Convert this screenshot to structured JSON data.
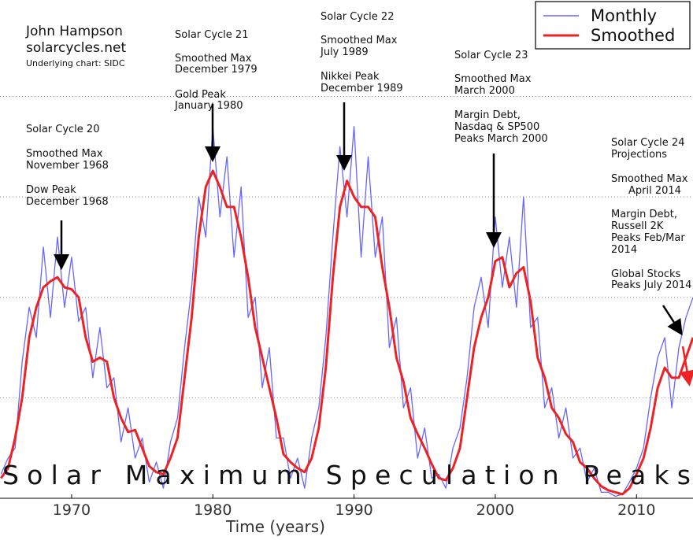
{
  "chart_data": {
    "type": "line",
    "title": "Solar Maximum Speculation Peaks",
    "author": [
      "John Hampson",
      "solarcycles.net"
    ],
    "source": "Underlying chart: SIDC",
    "x_label": "Time (years)",
    "x": [
      1965,
      1965.5,
      1966,
      1966.5,
      1967,
      1967.5,
      1968,
      1968.5,
      1969,
      1969.5,
      1970,
      1970.5,
      1971,
      1971.5,
      1972,
      1972.5,
      1973,
      1973.5,
      1974,
      1974.5,
      1975,
      1975.5,
      1976,
      1976.5,
      1977,
      1977.5,
      1978,
      1978.5,
      1979,
      1979.5,
      1980,
      1980.5,
      1981,
      1981.5,
      1982,
      1982.5,
      1983,
      1983.5,
      1984,
      1984.5,
      1985,
      1985.5,
      1986,
      1986.5,
      1987,
      1987.5,
      1988,
      1988.5,
      1989,
      1989.5,
      1990,
      1990.5,
      1991,
      1991.5,
      1992,
      1992.5,
      1993,
      1993.5,
      1994,
      1994.5,
      1995,
      1995.5,
      1996,
      1996.5,
      1997,
      1997.5,
      1998,
      1998.5,
      1999,
      1999.5,
      2000,
      2000.5,
      2001,
      2001.5,
      2002,
      2002.5,
      2003,
      2003.5,
      2004,
      2004.5,
      2005,
      2005.5,
      2006,
      2006.5,
      2007,
      2007.5,
      2008,
      2008.5,
      2009,
      2009.5,
      2010,
      2010.5,
      2011,
      2011.5,
      2012,
      2012.5,
      2013,
      2013.5,
      2014
    ],
    "series": [
      {
        "name": "Monthly",
        "color": "#6666ff",
        "values": [
          12,
          20,
          25,
          68,
          95,
          80,
          125,
          90,
          130,
          95,
          120,
          88,
          95,
          60,
          85,
          55,
          60,
          28,
          45,
          20,
          30,
          8,
          18,
          5,
          28,
          40,
          75,
          105,
          150,
          130,
          185,
          140,
          170,
          120,
          155,
          90,
          100,
          55,
          75,
          30,
          30,
          10,
          20,
          5,
          30,
          45,
          80,
          130,
          175,
          140,
          185,
          120,
          170,
          120,
          140,
          75,
          90,
          45,
          55,
          20,
          35,
          10,
          12,
          5,
          25,
          35,
          60,
          95,
          110,
          85,
          140,
          105,
          130,
          95,
          150,
          85,
          90,
          45,
          55,
          30,
          45,
          20,
          25,
          8,
          15,
          3,
          3,
          1,
          2,
          8,
          15,
          25,
          50,
          70,
          80,
          45,
          75,
          90,
          100
        ]
      },
      {
        "name": "Smoothed",
        "color": "#ee2222",
        "values": [
          10,
          15,
          30,
          50,
          80,
          95,
          105,
          108,
          110,
          105,
          104,
          100,
          80,
          68,
          70,
          68,
          50,
          40,
          33,
          34,
          25,
          16,
          13,
          12,
          20,
          30,
          60,
          90,
          130,
          155,
          163,
          155,
          145,
          145,
          130,
          110,
          85,
          70,
          55,
          40,
          22,
          18,
          15,
          13,
          20,
          35,
          65,
          110,
          145,
          158,
          150,
          145,
          145,
          140,
          115,
          95,
          70,
          58,
          40,
          32,
          25,
          17,
          10,
          9,
          15,
          25,
          50,
          75,
          90,
          100,
          118,
          120,
          105,
          112,
          115,
          98,
          70,
          60,
          45,
          40,
          32,
          28,
          18,
          15,
          10,
          6,
          4,
          3,
          2,
          5,
          12,
          20,
          35,
          55,
          65,
          60,
          60,
          70,
          80
        ]
      }
    ],
    "xlim": [
      1964.93,
      2014.0
    ],
    "xticks": [
      1970,
      1980,
      1990,
      2000,
      2010
    ],
    "ylim": [
      0,
      248
    ],
    "yticks": [
      50,
      100,
      150,
      200
    ],
    "grid": true,
    "legend": "upper right",
    "annotations": [
      {
        "lines": [
          "Solar Cycle 20",
          "Smoothed Max",
          "November 1968",
          "Dow Peak",
          "December 1968"
        ]
      },
      {
        "lines": [
          "Solar Cycle 21",
          "Smoothed Max",
          "December 1979",
          "Gold Peak",
          "January 1980"
        ]
      },
      {
        "lines": [
          "Solar Cycle 22",
          "Smoothed Max",
          "July 1989",
          "Nikkei Peak",
          "December 1989"
        ]
      },
      {
        "lines": [
          "Solar Cycle 23",
          "Smoothed Max",
          "March 2000",
          "Margin Debt,",
          "Nasdaq & SP500",
          "Peaks March 2000"
        ]
      },
      {
        "lines": [
          "Solar Cycle 24",
          "Projections",
          "Smoothed Max",
          "April 2014",
          "Margin Debt,",
          "Russell 2K",
          "Peaks Feb/Mar",
          "2014",
          "Global Stocks",
          "Peaks July 2014"
        ]
      }
    ]
  }
}
